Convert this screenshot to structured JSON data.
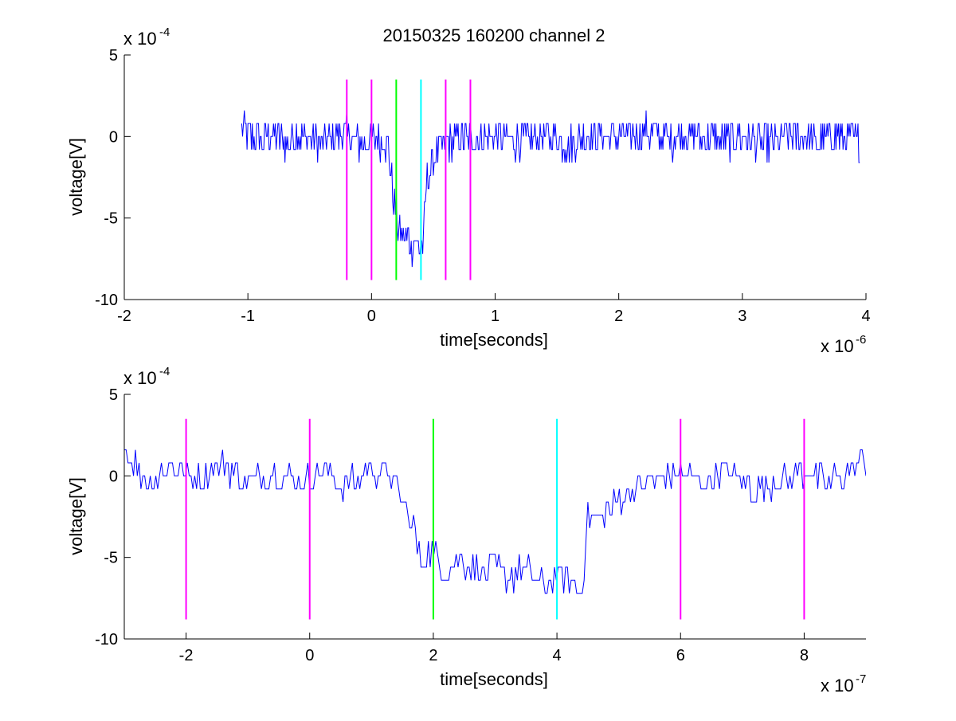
{
  "figure": {
    "title": "20150325 160200 channel 2"
  },
  "chart_data": [
    {
      "type": "line",
      "title": "20150325 160200 channel 2",
      "xlabel": "time[seconds]",
      "ylabel": "voltage[V]",
      "x_exponent": {
        "base": "x 10",
        "power": "-6"
      },
      "y_exponent": {
        "base": "x 10",
        "power": "-4"
      },
      "xlim": [
        -2,
        4
      ],
      "ylim": [
        -10,
        5
      ],
      "x_ticks": [
        -2,
        -1,
        0,
        1,
        2,
        3,
        4
      ],
      "x_tick_labels": [
        "-2",
        "-1",
        "0",
        "1",
        "2",
        "3",
        "4"
      ],
      "y_ticks": [
        -10,
        -5,
        0,
        5
      ],
      "y_tick_labels": [
        "-10",
        "-5",
        "0",
        "5"
      ],
      "grid": false,
      "signal_color": "#0000ff",
      "series": [
        {
          "color": "#0000ff",
          "x": [
            -1.05,
            -1.0,
            -0.9,
            -0.8,
            -0.7,
            -0.6,
            -0.5,
            -0.4,
            -0.3,
            -0.2,
            -0.1,
            0.0,
            0.1,
            0.14,
            0.16,
            0.18,
            0.2,
            0.22,
            0.25,
            0.28,
            0.3,
            0.32,
            0.35,
            0.38,
            0.4,
            0.42,
            0.44,
            0.46,
            0.5,
            0.55,
            0.6,
            0.7,
            0.8,
            1.0,
            1.2,
            1.4,
            1.6,
            1.8,
            2.0,
            2.2,
            2.4,
            2.6,
            2.8,
            3.0,
            3.2,
            3.4,
            3.6,
            3.8,
            3.95
          ],
          "y": [
            0.5,
            0.0,
            -0.3,
            0.2,
            -0.4,
            0.1,
            -0.2,
            -0.5,
            0.0,
            0.2,
            -0.5,
            -0.3,
            -0.2,
            -0.8,
            -2.5,
            -4.0,
            -4.5,
            -6.0,
            -5.8,
            -6.5,
            -6.2,
            -6.8,
            -6.0,
            -7.0,
            -6.5,
            -7.0,
            -3.0,
            -2.5,
            -1.5,
            -0.8,
            -0.5,
            0.0,
            -0.2,
            0.1,
            -0.3,
            0.0,
            -0.4,
            0.2,
            -0.1,
            0.3,
            -0.2,
            0.1,
            -0.3,
            0.0,
            -0.5,
            0.2,
            -0.3,
            0.1,
            -0.4
          ]
        }
      ],
      "markers": [
        {
          "x": -0.2,
          "color": "#ff00ff"
        },
        {
          "x": 0.0,
          "color": "#ff00ff"
        },
        {
          "x": 0.2,
          "color": "#00ff00"
        },
        {
          "x": 0.4,
          "color": "#00ffff"
        },
        {
          "x": 0.6,
          "color": "#ff00ff"
        },
        {
          "x": 0.8,
          "color": "#ff00ff"
        }
      ],
      "marker_yrange": [
        -8.8,
        3.5
      ]
    },
    {
      "type": "line",
      "title": "",
      "xlabel": "time[seconds]",
      "ylabel": "voltage[V]",
      "x_exponent": {
        "base": "x 10",
        "power": "-7"
      },
      "y_exponent": {
        "base": "x 10",
        "power": "-4"
      },
      "xlim": [
        -3,
        9
      ],
      "ylim": [
        -10,
        5
      ],
      "x_ticks": [
        -2,
        0,
        2,
        4,
        6,
        8
      ],
      "x_tick_labels": [
        "-2",
        "0",
        "2",
        "4",
        "6",
        "8"
      ],
      "y_ticks": [
        -10,
        -5,
        0,
        5
      ],
      "y_tick_labels": [
        "-10",
        "-5",
        "0",
        "5"
      ],
      "grid": false,
      "signal_color": "#0000ff",
      "series": [
        {
          "color": "#0000ff",
          "x": [
            -3.0,
            -2.6,
            -2.2,
            -1.8,
            -1.4,
            -1.0,
            -0.6,
            -0.2,
            0.2,
            0.6,
            1.0,
            1.3,
            1.5,
            1.7,
            1.8,
            1.9,
            2.0,
            2.2,
            2.5,
            2.8,
            3.0,
            3.2,
            3.5,
            3.8,
            4.0,
            4.2,
            4.4,
            4.5,
            4.7,
            5.0,
            5.3,
            5.6,
            6.0,
            6.4,
            6.8,
            7.2,
            7.6,
            8.0,
            8.4,
            8.8,
            9.0
          ],
          "y": [
            1.5,
            -0.3,
            0.5,
            -0.2,
            0.8,
            -0.5,
            0.2,
            -0.4,
            0.3,
            -0.6,
            0.4,
            0.2,
            -1.5,
            -3.5,
            -5.5,
            -4.5,
            -4.8,
            -6.0,
            -5.2,
            -6.0,
            -5.5,
            -6.3,
            -5.8,
            -6.8,
            -6.0,
            -6.5,
            -7.0,
            -2.5,
            -2.5,
            -1.5,
            -0.8,
            -0.2,
            0.2,
            -0.5,
            0.4,
            -1.0,
            -0.2,
            0.3,
            -0.5,
            0.5,
            1.0
          ]
        }
      ],
      "markers": [
        {
          "x": -2,
          "color": "#ff00ff"
        },
        {
          "x": 0,
          "color": "#ff00ff"
        },
        {
          "x": 2,
          "color": "#00ff00"
        },
        {
          "x": 4,
          "color": "#00ffff"
        },
        {
          "x": 6,
          "color": "#ff00ff"
        },
        {
          "x": 8,
          "color": "#ff00ff"
        }
      ],
      "marker_yrange": [
        -8.8,
        3.5
      ]
    }
  ]
}
